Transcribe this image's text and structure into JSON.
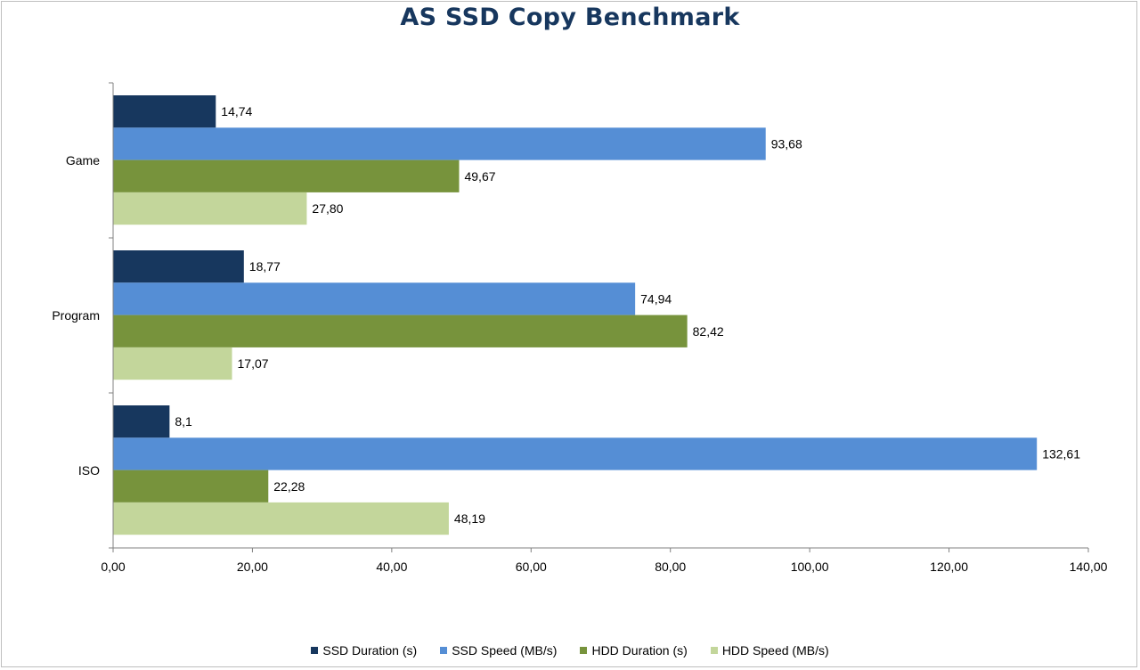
{
  "chart_data": {
    "type": "bar",
    "orientation": "horizontal",
    "title": "AS SSD Copy Benchmark",
    "categories": [
      "Game",
      "Program",
      "ISO"
    ],
    "series": [
      {
        "name": "SSD Duration (s)",
        "color": "#17375e",
        "values": [
          14.74,
          18.77,
          8.1
        ],
        "labels": [
          "14,74",
          "18,77",
          "8,1"
        ]
      },
      {
        "name": "SSD Speed (MB/s)",
        "color": "#558ed5",
        "values": [
          93.68,
          74.94,
          132.61
        ],
        "labels": [
          "93,68",
          "74,94",
          "132,61"
        ]
      },
      {
        "name": "HDD Duration (s)",
        "color": "#77933c",
        "values": [
          49.67,
          82.42,
          22.28
        ],
        "labels": [
          "49,67",
          "82,42",
          "22,28"
        ]
      },
      {
        "name": "HDD Speed (MB/s)",
        "color": "#c3d69b",
        "values": [
          27.8,
          17.07,
          48.19
        ],
        "labels": [
          "27,80",
          "17,07",
          "48,19"
        ]
      }
    ],
    "xlim": [
      0,
      140
    ],
    "xticks": [
      0,
      20,
      40,
      60,
      80,
      100,
      120,
      140
    ],
    "xtick_labels": [
      "0,00",
      "20,00",
      "40,00",
      "60,00",
      "80,00",
      "100,00",
      "120,00",
      "140,00"
    ],
    "grid": false,
    "legend_position": "bottom"
  }
}
